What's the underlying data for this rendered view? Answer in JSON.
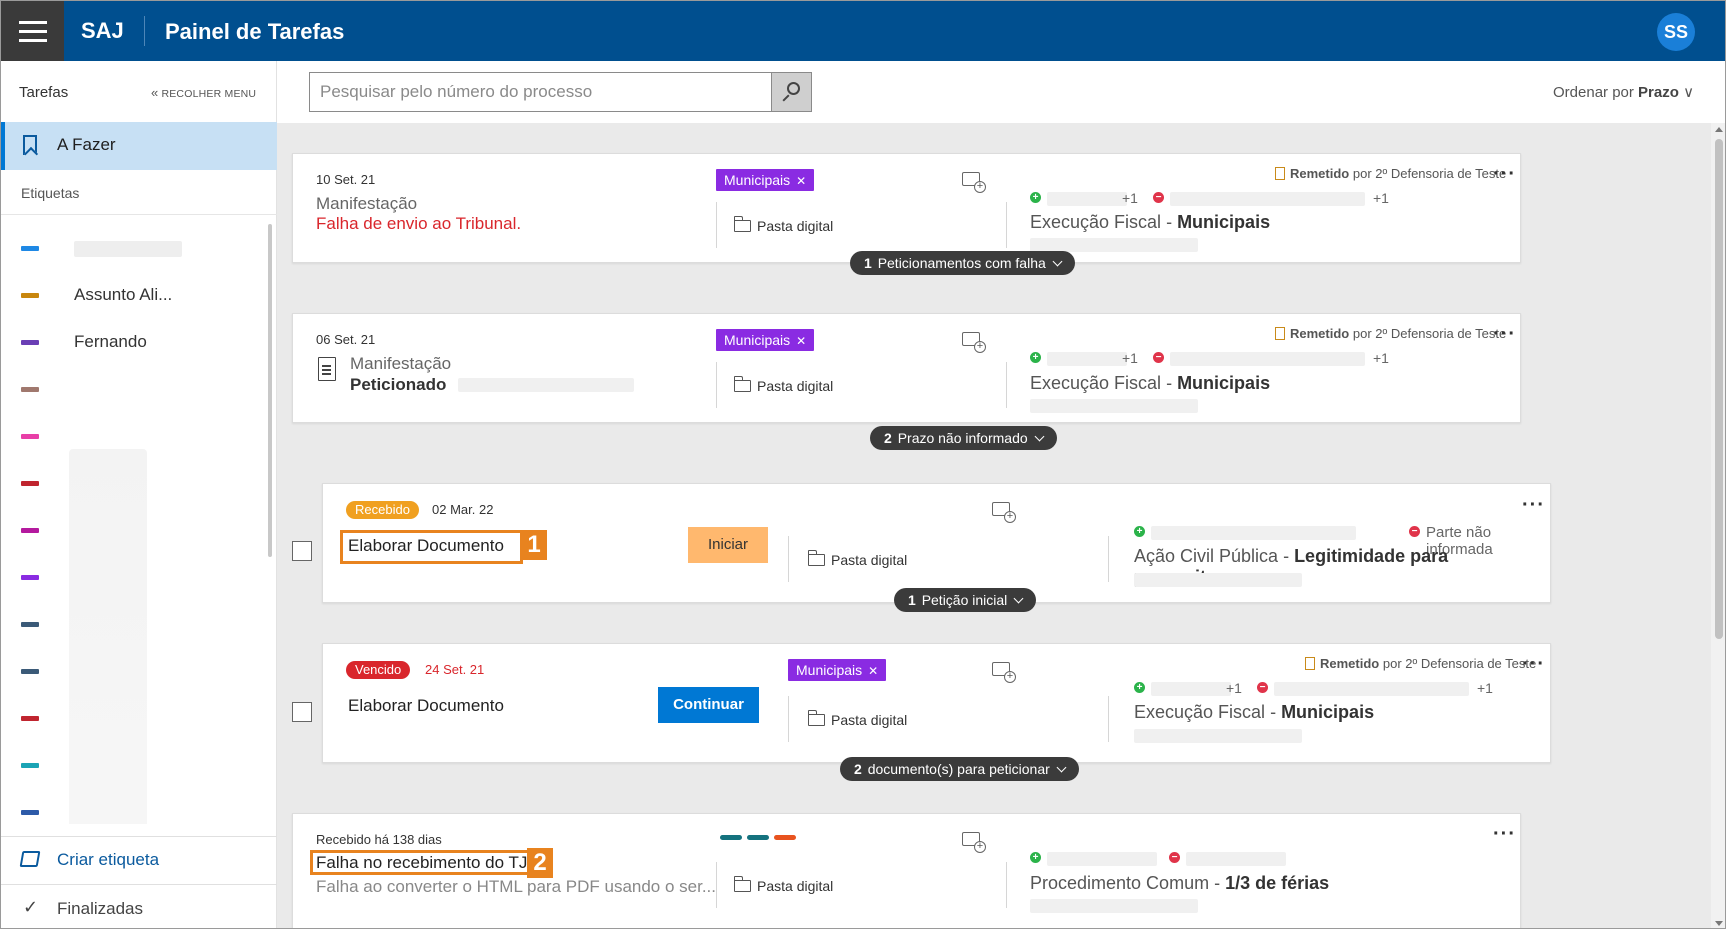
{
  "header": {
    "brand": "SAJ",
    "title": "Painel de Tarefas",
    "avatar_initials": "SS",
    "color": "#004f8f"
  },
  "sidebar": {
    "title": "Tarefas",
    "collapse_label": "RECOLHER MENU",
    "active_item": "A Fazer",
    "section_label": "Etiquetas",
    "tags": [
      {
        "name": "",
        "color": "#1e88e5"
      },
      {
        "name": "Assunto Ali...",
        "color": "#c8860d"
      },
      {
        "name": "Fernando",
        "color": "#6a3fb5"
      },
      {
        "name": "",
        "color": "#a0786e"
      },
      {
        "name": "",
        "color": "#e83ea7"
      },
      {
        "name": "",
        "color": "#c0252f"
      },
      {
        "name": "",
        "color": "#b41a9e"
      },
      {
        "name": "",
        "color": "#8a2be2"
      },
      {
        "name": "",
        "color": "#3b5a78"
      },
      {
        "name": "",
        "color": "#3b5a78"
      },
      {
        "name": "",
        "color": "#c0252f"
      },
      {
        "name": "",
        "color": "#1ba4b5"
      },
      {
        "name": "",
        "color": "#2d5aa8"
      }
    ],
    "create_tag_label": "Criar etiqueta",
    "finished_label": "Finalizadas"
  },
  "toolbar": {
    "search_placeholder": "Pesquisar pelo número do processo",
    "sort_prefix": "Ordenar por",
    "sort_value": "Prazo"
  },
  "cards": [
    {
      "date": "10 Set. 21",
      "title": "Manifestação",
      "subtitle": "Falha de envio ao Tribunal.",
      "chip": "Municipais",
      "folder": "Pasta digital",
      "remetido": "Remetido",
      "remetido_by": "por 2º Defensoria de Teste",
      "plus_left": "+1",
      "plus_right": "+1",
      "classe": "Execução Fiscal",
      "assunto": "Municipais",
      "pill_count": "1",
      "pill_text": "Peticionamentos com falha"
    },
    {
      "date": "06 Set. 21",
      "title": "Manifestação",
      "subtitle": "Peticionado",
      "chip": "Municipais",
      "folder": "Pasta digital",
      "remetido": "Remetido",
      "remetido_by": "por 2º Defensoria de Teste",
      "plus_left": "+1",
      "plus_right": "+1",
      "classe": "Execução Fiscal",
      "assunto": "Municipais",
      "pill_count": "2",
      "pill_text": "Prazo não informado"
    },
    {
      "status": "Recebido",
      "status_color": "#f0a020",
      "date": "02 Mar. 22",
      "title": "Elaborar Documento",
      "button": "Iniciar",
      "folder": "Pasta digital",
      "parte": "Parte não informada",
      "classe": "Ação Civil Pública",
      "assunto": "Legitimidade para propositu...",
      "pill_count": "1",
      "pill_text": "Petição inicial",
      "marker": "1"
    },
    {
      "status": "Vencido",
      "status_color": "#d9262c",
      "date": "24 Set. 21",
      "title": "Elaborar Documento",
      "button": "Continuar",
      "chip": "Municipais",
      "folder": "Pasta digital",
      "remetido": "Remetido",
      "remetido_by": "por 2º Defensoria de Teste",
      "plus_left": "+1",
      "plus_right": "+1",
      "classe": "Execução Fiscal",
      "assunto": "Municipais",
      "pill_count": "2",
      "pill_text": "documento(s) para peticionar"
    },
    {
      "date": "Recebido há 138 dias",
      "title": "Falha no recebimento do TJ",
      "subtitle": "Falha ao converter o HTML para PDF usando o ser...",
      "folder": "Pasta digital",
      "classe": "Procedimento Comum",
      "assunto": "1/3 de férias",
      "marker": "2",
      "tag_colors": [
        "#14727e",
        "#14727e",
        "#e8531f"
      ]
    }
  ]
}
